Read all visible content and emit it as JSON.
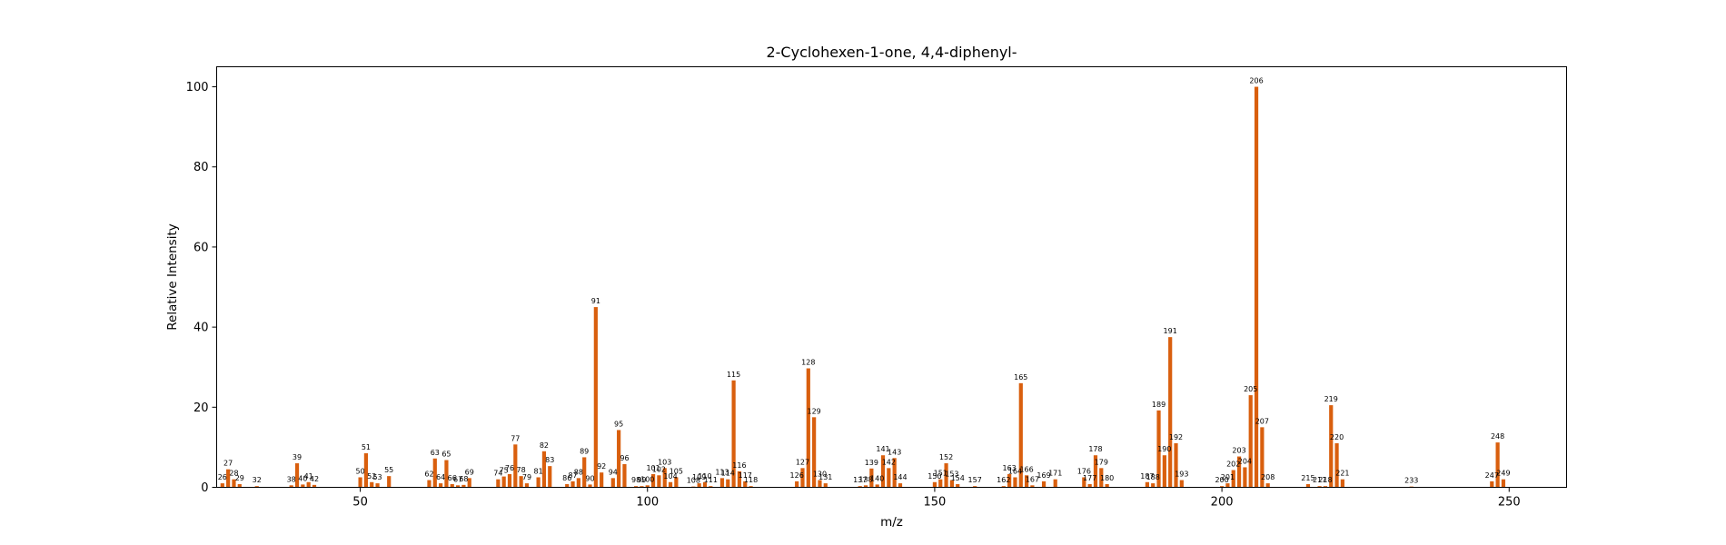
{
  "chart_data": {
    "type": "bar",
    "title": "2-Cyclohexen-1-one, 4,4-diphenyl-",
    "xlabel": "m/z",
    "ylabel": "Relative Intensity",
    "xlim": [
      25,
      260
    ],
    "ylim": [
      0,
      105
    ],
    "xticks": [
      50,
      100,
      150,
      200,
      250
    ],
    "yticks": [
      0,
      20,
      40,
      60,
      80,
      100
    ],
    "grid": false,
    "bar_color": "#d95f0e",
    "peaks": [
      {
        "mz": 26,
        "intensity": 1.0
      },
      {
        "mz": 27,
        "intensity": 4.5
      },
      {
        "mz": 28,
        "intensity": 2.0
      },
      {
        "mz": 29,
        "intensity": 0.8
      },
      {
        "mz": 32,
        "intensity": 0.3
      },
      {
        "mz": 38,
        "intensity": 0.5
      },
      {
        "mz": 39,
        "intensity": 6.0
      },
      {
        "mz": 40,
        "intensity": 0.7
      },
      {
        "mz": 41,
        "intensity": 1.3
      },
      {
        "mz": 42,
        "intensity": 0.6
      },
      {
        "mz": 50,
        "intensity": 2.5
      },
      {
        "mz": 51,
        "intensity": 8.5
      },
      {
        "mz": 52,
        "intensity": 1.3
      },
      {
        "mz": 53,
        "intensity": 1.0
      },
      {
        "mz": 55,
        "intensity": 2.8
      },
      {
        "mz": 62,
        "intensity": 1.8
      },
      {
        "mz": 63,
        "intensity": 7.2
      },
      {
        "mz": 64,
        "intensity": 1.0
      },
      {
        "mz": 65,
        "intensity": 6.8
      },
      {
        "mz": 66,
        "intensity": 0.8
      },
      {
        "mz": 67,
        "intensity": 0.5
      },
      {
        "mz": 68,
        "intensity": 0.6
      },
      {
        "mz": 69,
        "intensity": 2.3
      },
      {
        "mz": 74,
        "intensity": 2.0
      },
      {
        "mz": 75,
        "intensity": 2.7
      },
      {
        "mz": 76,
        "intensity": 3.3
      },
      {
        "mz": 77,
        "intensity": 10.7
      },
      {
        "mz": 78,
        "intensity": 2.8
      },
      {
        "mz": 79,
        "intensity": 1.0
      },
      {
        "mz": 81,
        "intensity": 2.5
      },
      {
        "mz": 82,
        "intensity": 9.0
      },
      {
        "mz": 83,
        "intensity": 5.3
      },
      {
        "mz": 86,
        "intensity": 0.8
      },
      {
        "mz": 87,
        "intensity": 1.5
      },
      {
        "mz": 88,
        "intensity": 2.3
      },
      {
        "mz": 89,
        "intensity": 7.5
      },
      {
        "mz": 90,
        "intensity": 0.7
      },
      {
        "mz": 91,
        "intensity": 45.0
      },
      {
        "mz": 92,
        "intensity": 3.7
      },
      {
        "mz": 94,
        "intensity": 2.3
      },
      {
        "mz": 95,
        "intensity": 14.3
      },
      {
        "mz": 96,
        "intensity": 5.8
      },
      {
        "mz": 98,
        "intensity": 0.3
      },
      {
        "mz": 99,
        "intensity": 0.3
      },
      {
        "mz": 100,
        "intensity": 0.5
      },
      {
        "mz": 101,
        "intensity": 3.3
      },
      {
        "mz": 102,
        "intensity": 3.0
      },
      {
        "mz": 103,
        "intensity": 4.8
      },
      {
        "mz": 104,
        "intensity": 1.3
      },
      {
        "mz": 105,
        "intensity": 2.5
      },
      {
        "mz": 108,
        "intensity": 0.2
      },
      {
        "mz": 109,
        "intensity": 1.0
      },
      {
        "mz": 110,
        "intensity": 1.3
      },
      {
        "mz": 111,
        "intensity": 0.3
      },
      {
        "mz": 113,
        "intensity": 2.3
      },
      {
        "mz": 114,
        "intensity": 2.0
      },
      {
        "mz": 115,
        "intensity": 26.7
      },
      {
        "mz": 116,
        "intensity": 4.0
      },
      {
        "mz": 117,
        "intensity": 1.5
      },
      {
        "mz": 118,
        "intensity": 0.3
      },
      {
        "mz": 126,
        "intensity": 1.5
      },
      {
        "mz": 127,
        "intensity": 4.8
      },
      {
        "mz": 128,
        "intensity": 29.7
      },
      {
        "mz": 129,
        "intensity": 17.5
      },
      {
        "mz": 130,
        "intensity": 1.8
      },
      {
        "mz": 131,
        "intensity": 1.0
      },
      {
        "mz": 137,
        "intensity": 0.3
      },
      {
        "mz": 138,
        "intensity": 0.5
      },
      {
        "mz": 139,
        "intensity": 4.7
      },
      {
        "mz": 140,
        "intensity": 0.7
      },
      {
        "mz": 141,
        "intensity": 8.0
      },
      {
        "mz": 142,
        "intensity": 4.8
      },
      {
        "mz": 143,
        "intensity": 7.3
      },
      {
        "mz": 144,
        "intensity": 1.0
      },
      {
        "mz": 150,
        "intensity": 1.3
      },
      {
        "mz": 151,
        "intensity": 2.0
      },
      {
        "mz": 152,
        "intensity": 6.0
      },
      {
        "mz": 153,
        "intensity": 1.8
      },
      {
        "mz": 154,
        "intensity": 0.8
      },
      {
        "mz": 157,
        "intensity": 0.3
      },
      {
        "mz": 162,
        "intensity": 0.3
      },
      {
        "mz": 163,
        "intensity": 3.3
      },
      {
        "mz": 164,
        "intensity": 2.5
      },
      {
        "mz": 165,
        "intensity": 26.0
      },
      {
        "mz": 166,
        "intensity": 3.0
      },
      {
        "mz": 167,
        "intensity": 0.5
      },
      {
        "mz": 169,
        "intensity": 1.5
      },
      {
        "mz": 171,
        "intensity": 2.0
      },
      {
        "mz": 176,
        "intensity": 2.5
      },
      {
        "mz": 177,
        "intensity": 0.8
      },
      {
        "mz": 178,
        "intensity": 8.0
      },
      {
        "mz": 179,
        "intensity": 4.8
      },
      {
        "mz": 180,
        "intensity": 0.8
      },
      {
        "mz": 187,
        "intensity": 1.3
      },
      {
        "mz": 188,
        "intensity": 1.0
      },
      {
        "mz": 189,
        "intensity": 19.2
      },
      {
        "mz": 190,
        "intensity": 8.0
      },
      {
        "mz": 191,
        "intensity": 37.5
      },
      {
        "mz": 192,
        "intensity": 11.0
      },
      {
        "mz": 193,
        "intensity": 1.8
      },
      {
        "mz": 200,
        "intensity": 0.3
      },
      {
        "mz": 201,
        "intensity": 1.0
      },
      {
        "mz": 202,
        "intensity": 4.3
      },
      {
        "mz": 203,
        "intensity": 7.7
      },
      {
        "mz": 204,
        "intensity": 5.0
      },
      {
        "mz": 205,
        "intensity": 23.0
      },
      {
        "mz": 206,
        "intensity": 100.0
      },
      {
        "mz": 207,
        "intensity": 15.0
      },
      {
        "mz": 208,
        "intensity": 1.0
      },
      {
        "mz": 215,
        "intensity": 0.8
      },
      {
        "mz": 217,
        "intensity": 0.3
      },
      {
        "mz": 218,
        "intensity": 0.3
      },
      {
        "mz": 219,
        "intensity": 20.5
      },
      {
        "mz": 220,
        "intensity": 11.0
      },
      {
        "mz": 221,
        "intensity": 2.0
      },
      {
        "mz": 233,
        "intensity": 0.2
      },
      {
        "mz": 247,
        "intensity": 1.5
      },
      {
        "mz": 248,
        "intensity": 11.2
      },
      {
        "mz": 249,
        "intensity": 2.0
      }
    ]
  }
}
